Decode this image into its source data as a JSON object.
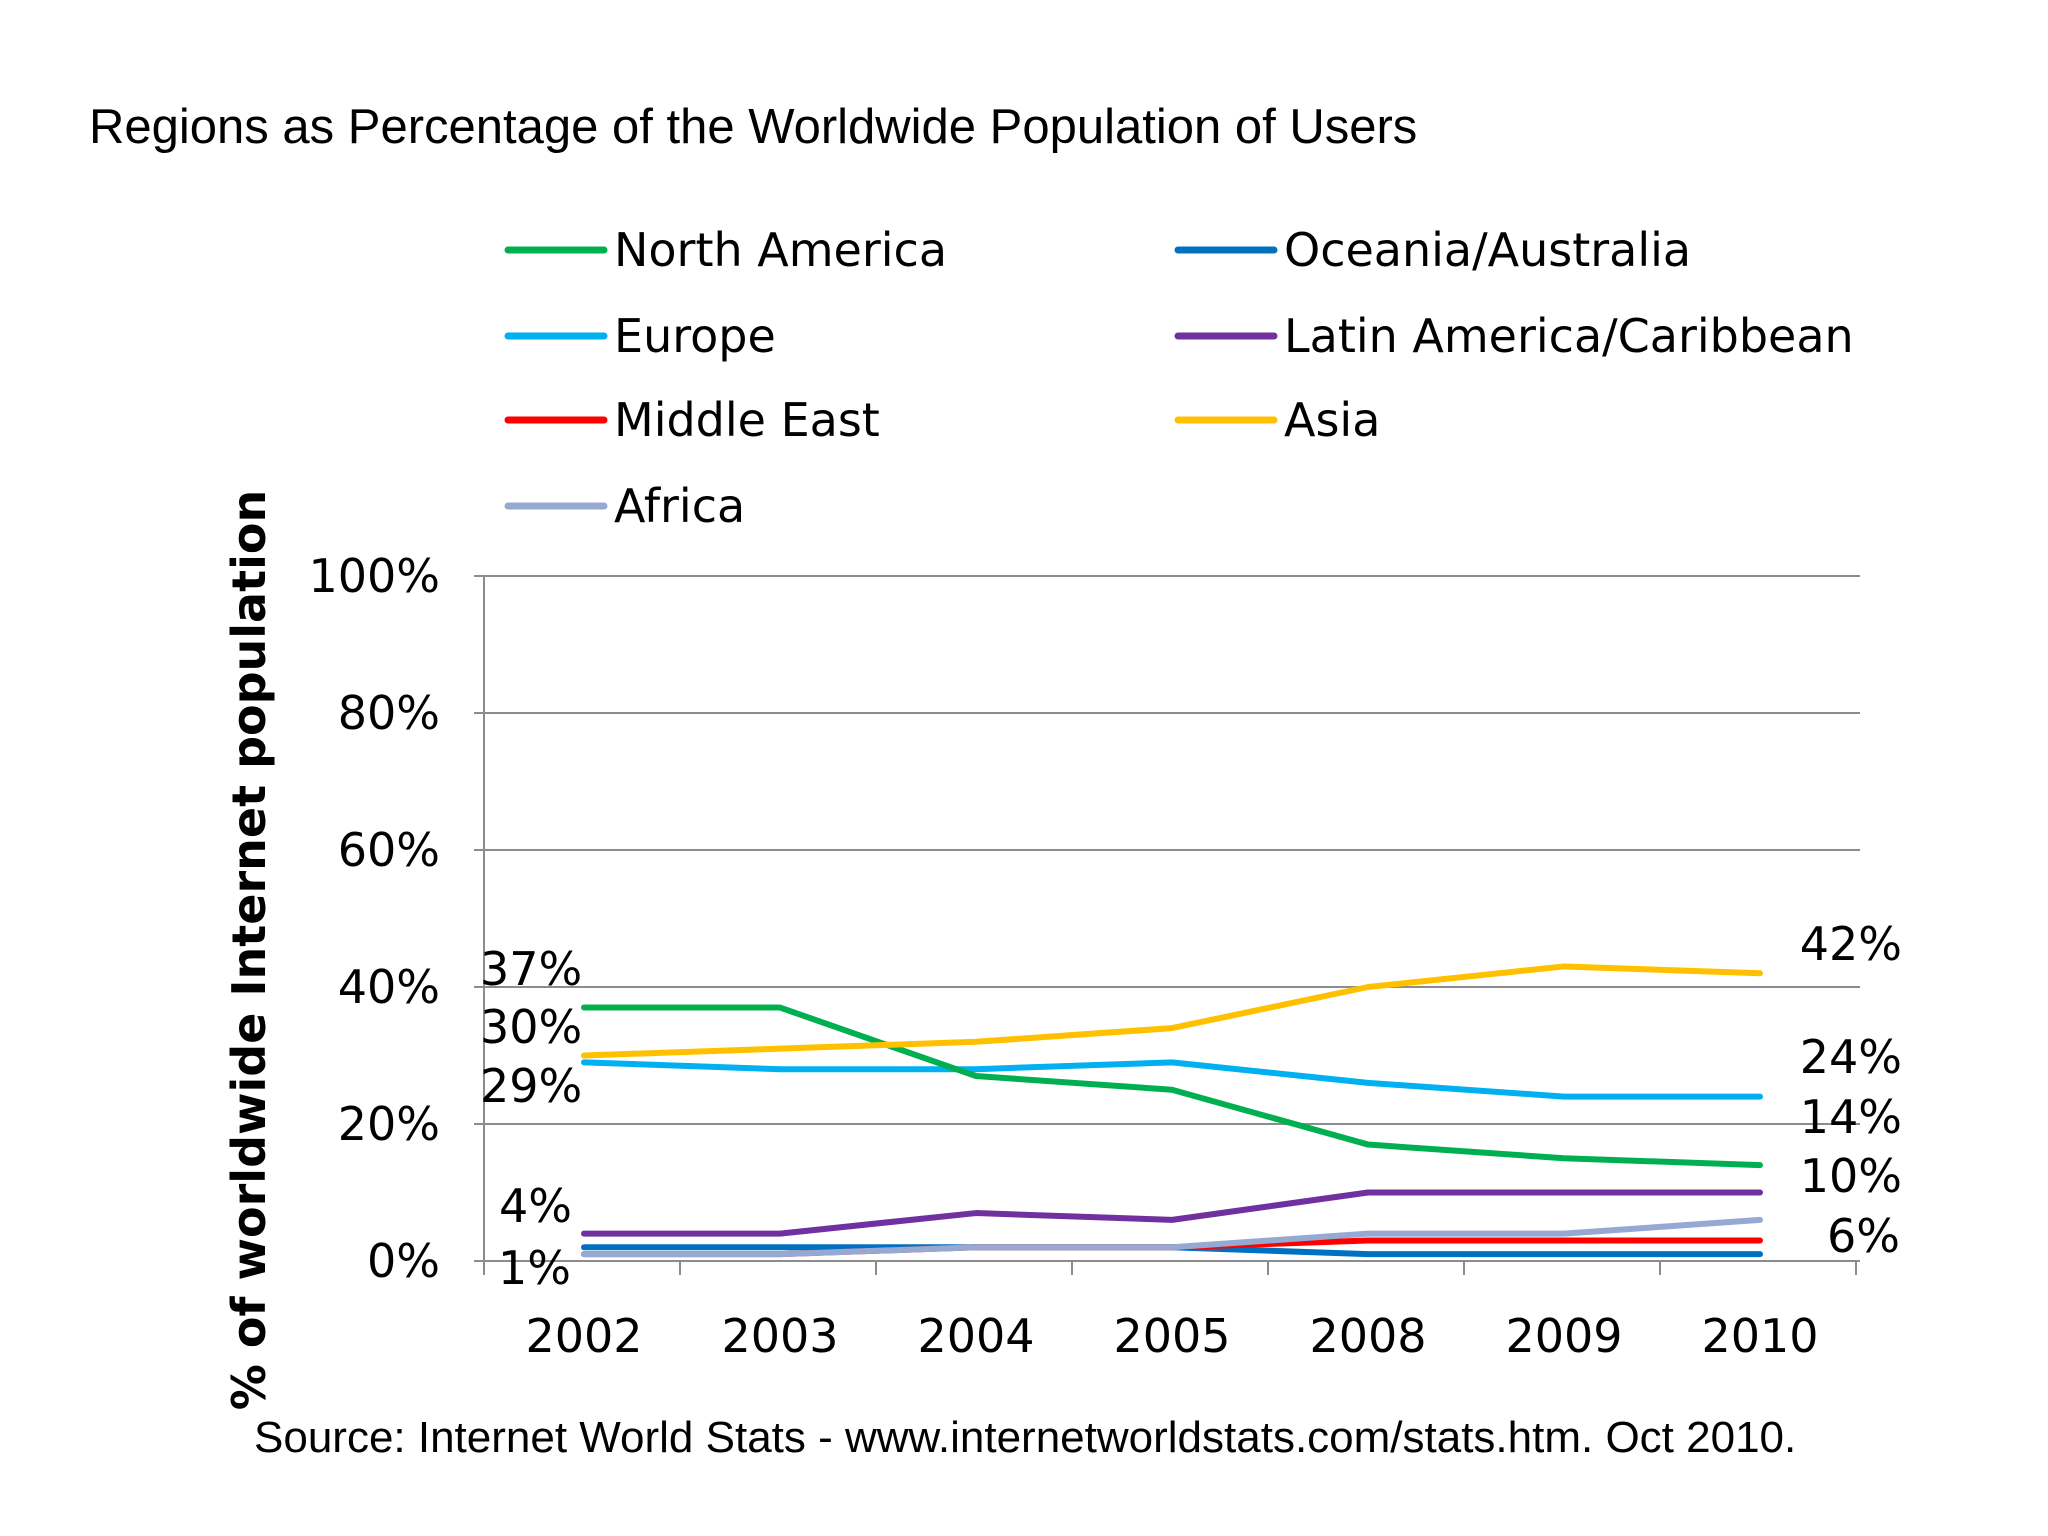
{
  "page": {
    "title": "Regions as Percentage of the Worldwide Population of Users"
  },
  "chart_data": {
    "type": "line",
    "x": [
      "2002",
      "2003",
      "2004",
      "2005",
      "2008",
      "2009",
      "2010"
    ],
    "ylabel": "% of worldwide Internet population",
    "ylim": [
      0,
      100
    ],
    "yticks": [
      0,
      20,
      40,
      60,
      80,
      100
    ],
    "ytick_labels": [
      "0%",
      "20%",
      "40%",
      "60%",
      "80%",
      "100%"
    ],
    "grid": true,
    "legend_position": "top",
    "series": [
      {
        "name": "North America",
        "color": "#00b050",
        "values": [
          37,
          37,
          27,
          25,
          17,
          15,
          14
        ]
      },
      {
        "name": "Europe",
        "color": "#00b0f0",
        "values": [
          29,
          28,
          28,
          29,
          26,
          24,
          24
        ]
      },
      {
        "name": "Middle East",
        "color": "#ff0000",
        "values": [
          1,
          1,
          2,
          2,
          3,
          3,
          3
        ]
      },
      {
        "name": "Africa",
        "color": "#95a9d3",
        "values": [
          1,
          1,
          2,
          2,
          4,
          4,
          6
        ]
      },
      {
        "name": "Oceania/Australia",
        "color": "#0070c0",
        "values": [
          2,
          2,
          2,
          2,
          1,
          1,
          1
        ]
      },
      {
        "name": "Latin America/Caribbean",
        "color": "#7030a0",
        "values": [
          4,
          4,
          7,
          6,
          10,
          10,
          10
        ]
      },
      {
        "name": "Asia",
        "color": "#ffc000",
        "values": [
          30,
          31,
          32,
          34,
          40,
          43,
          42
        ]
      }
    ],
    "legend_order": [
      "North America",
      "Oceania/Australia",
      "Europe",
      "Latin America/Caribbean",
      "Middle East",
      "Asia",
      "Africa"
    ],
    "annotations": {
      "left": [
        {
          "text": "37%",
          "value": 37
        },
        {
          "text": "30%",
          "value": 30
        },
        {
          "text": "29%",
          "value": 29
        },
        {
          "text": "4%",
          "value": 4
        },
        {
          "text": "1%",
          "value": 1
        }
      ],
      "right": [
        {
          "text": "42%",
          "value": 42
        },
        {
          "text": "24%",
          "value": 24
        },
        {
          "text": "14%",
          "value": 14
        },
        {
          "text": "10%",
          "value": 10
        },
        {
          "text": "6%",
          "value": 6
        }
      ]
    },
    "source": "Source: Internet World Stats - www.internetworldstats.com/stats.htm.  Oct 2010."
  }
}
